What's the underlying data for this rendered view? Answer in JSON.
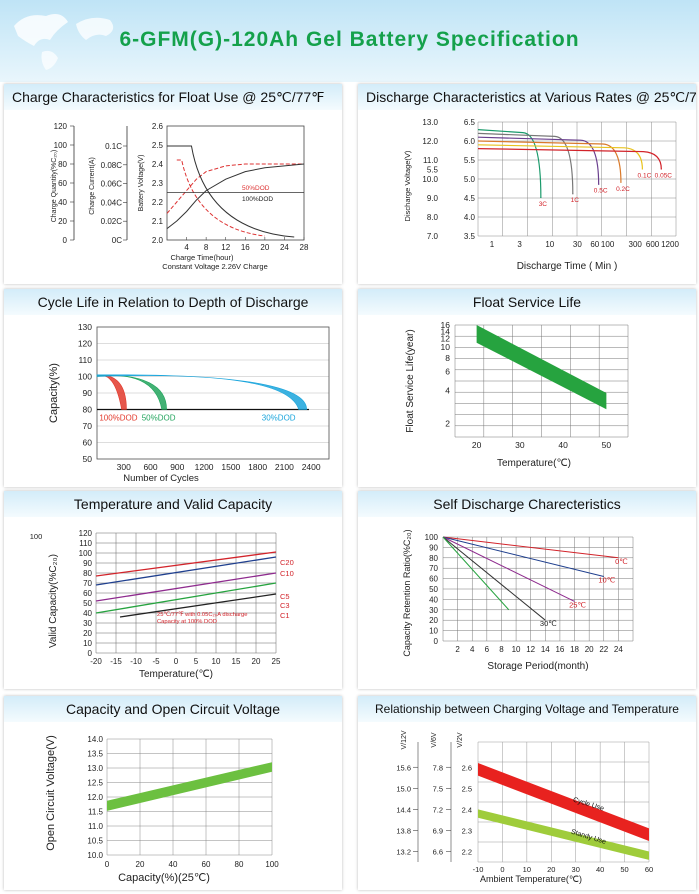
{
  "page": {
    "title": "6-GFM(G)-120Ah Gel Battery Specification"
  },
  "chart_data": [
    {
      "id": "charge",
      "type": "line",
      "title": "Charge Characteristics for Float Use @ 25℃/77℉",
      "ylabel_q": "Charge Quantity(%C₂₀)",
      "yticks_q": [
        "120",
        "100",
        "80",
        "60",
        "40",
        "20",
        "0"
      ],
      "ylabel_i": "Charge Current(A)",
      "yticks_i": [
        "0.1C",
        "0.08C",
        "0.06C",
        "0.04C",
        "0.02C",
        "0C"
      ],
      "ylabel_v": "Battery Voltage(V)",
      "yticks_v": [
        "2.6",
        "2.5",
        "2.4",
        "2.3",
        "2.2",
        "2.1",
        "2.0"
      ],
      "xlabel": "Charge Time(hour)",
      "xticks": [
        "4",
        "8",
        "12",
        "16",
        "20",
        "24",
        "28"
      ],
      "xlim": [
        0,
        28
      ],
      "vlim": [
        2.0,
        2.6
      ],
      "note": "Constant Voltage 2.26V Charge",
      "series": [
        {
          "name": "50%DOD",
          "color": "#d33",
          "x": [
            0,
            2,
            4,
            6,
            8,
            12,
            16,
            20,
            24,
            28
          ],
          "v": [
            2.14,
            2.2,
            2.26,
            2.32,
            2.36,
            2.39,
            2.4,
            2.4,
            2.4,
            2.4
          ]
        },
        {
          "name": "100%DOD",
          "color": "#333",
          "x": [
            0,
            2,
            4,
            6,
            8,
            12,
            16,
            20,
            24,
            28
          ],
          "v": [
            2.06,
            2.1,
            2.15,
            2.21,
            2.26,
            2.32,
            2.36,
            2.38,
            2.39,
            2.4
          ]
        }
      ],
      "legend": [
        "50%DOD",
        "100%DOD"
      ]
    },
    {
      "id": "discharge",
      "type": "line",
      "title": "Discharge Characteristics at Various Rates @ 25℃/77℉",
      "ylabel": "Discharge Voltage(V)",
      "yticks_12v": [
        "13.0",
        "12.0",
        "11.0",
        "10.0",
        "9.0",
        "8.0",
        "7.0"
      ],
      "yticks_12v_extra": [
        "5.5"
      ],
      "yticks_6v": [
        "6.5",
        "6.0",
        "5.5",
        "5.0",
        "4.5",
        "4.0",
        "3.5"
      ],
      "xlabel": "Discharge Time ( Min )",
      "xticks": [
        "1",
        "3",
        "10",
        "30",
        "60",
        "100",
        "300",
        "600",
        "1200"
      ],
      "series": [
        {
          "name": "3C",
          "color": "#1a9a6b",
          "end_min": 7,
          "end_v": 4.5
        },
        {
          "name": "1C",
          "color": "#777",
          "end_min": 25,
          "end_v": 4.6
        },
        {
          "name": "0.5C",
          "color": "#6a3f8e",
          "end_min": 70,
          "end_v": 4.85
        },
        {
          "name": "0.2C",
          "color": "#d97a2b",
          "end_min": 170,
          "end_v": 4.9
        },
        {
          "name": "0.1C",
          "color": "#e8c31f",
          "end_min": 400,
          "end_v": 5.25
        },
        {
          "name": "0.05C",
          "color": "#d2232a",
          "end_min": 850,
          "end_v": 5.25
        }
      ]
    },
    {
      "id": "cycle",
      "type": "area",
      "title": "Cycle  Life in Relation to Depth of Discharge",
      "ylabel": "Capacity(%)",
      "yticks": [
        "130",
        "120",
        "110",
        "100",
        "90",
        "80",
        "70",
        "60",
        "50"
      ],
      "ylim": [
        50,
        130
      ],
      "xlabel": "Number of Cycles",
      "xticks": [
        "300",
        "600",
        "900",
        "1200",
        "1500",
        "1800",
        "2100",
        "2400"
      ],
      "xlim": [
        0,
        2600
      ],
      "series": [
        {
          "name": "100%DOD",
          "color": "#e2382b",
          "end_cycles": 330
        },
        {
          "name": "50%DOD",
          "color": "#22a45d",
          "end_cycles": 780
        },
        {
          "name": "30%DOD",
          "color": "#1aa5dc",
          "end_cycles": 2350
        }
      ]
    },
    {
      "id": "float",
      "type": "area",
      "title": "Float Service Life",
      "ylabel": "Float Service Life(year)",
      "yticks": [
        "16",
        "14",
        "12",
        "10",
        "8",
        "6",
        "4",
        "2"
      ],
      "xlabel": "Temperature(℃)",
      "xticks": [
        "20",
        "30",
        "40",
        "50"
      ],
      "xlim": [
        15,
        55
      ],
      "band": {
        "x": [
          20,
          50
        ],
        "upper": [
          16,
          3.8
        ],
        "lower": [
          11,
          2.7
        ],
        "color": "#26a33f"
      }
    },
    {
      "id": "temp",
      "type": "line",
      "title": "Temperature and Valid Capacity",
      "ylabel": "Valid Capacity(%C₂₀)",
      "yticks": [
        "120",
        "110",
        "100",
        "90",
        "80",
        "70",
        "60",
        "50",
        "40",
        "30",
        "20",
        "10",
        "0"
      ],
      "ytop_label": "100",
      "ylim": [
        0,
        120
      ],
      "xlabel": "Temperature(℃)",
      "xticks": [
        "-20",
        "-15",
        "-10",
        "-5",
        "0",
        "5",
        "10",
        "15",
        "20",
        "25"
      ],
      "xlim": [
        -20,
        25
      ],
      "note1": "25℃/77℉ with 0.05C₂₀A discharge",
      "note2": "Capacity at 100% DOD",
      "series": [
        {
          "name": "C20",
          "color": "#d2232a",
          "v": [
            77,
            101
          ]
        },
        {
          "name": "C10",
          "color": "#1f3f8e",
          "v": [
            68,
            96
          ]
        },
        {
          "name": "C5",
          "color": "#8e2b8e",
          "v": [
            52,
            80
          ]
        },
        {
          "name": "C3",
          "color": "#26a33f",
          "v": [
            40,
            70
          ]
        },
        {
          "name": "C1",
          "color": "#222",
          "x0": -14,
          "v": [
            36,
            59
          ]
        }
      ]
    },
    {
      "id": "selfdis",
      "type": "line",
      "title": "Self Discharge Charecteristics",
      "ylabel": "Capacity Retention Ratio(%C₂₀)",
      "yticks": [
        "100",
        "90",
        "80",
        "70",
        "60",
        "50",
        "40",
        "30",
        "20",
        "10",
        "0"
      ],
      "ylim": [
        0,
        100
      ],
      "xlabel": "Storage Period(month)",
      "xticks": [
        "2",
        "4",
        "6",
        "8",
        "10",
        "12",
        "14",
        "16",
        "18",
        "20",
        "22",
        "24"
      ],
      "xlim": [
        0,
        26
      ],
      "series": [
        {
          "name": "0℃",
          "color": "#d2232a",
          "end_month": 24,
          "end_v": 80
        },
        {
          "name": "10℃",
          "color": "#1f3f8e",
          "end_month": 22,
          "end_v": 62
        },
        {
          "name": "25℃",
          "color": "#8e2b8e",
          "end_month": 18,
          "end_v": 38
        },
        {
          "name": "30℃",
          "color": "#333",
          "end_month": 14,
          "end_v": 20
        },
        {
          "name": "",
          "color": "#26a33f",
          "end_month": 9,
          "end_v": 30
        }
      ]
    },
    {
      "id": "ocv",
      "type": "area",
      "title": "Capacity and Open Circuit Voltage",
      "ylabel": "Open Circuit Voltage(V)",
      "yticks": [
        "14.0",
        "13.5",
        "13.0",
        "12.5",
        "12.0",
        "11.5",
        "11.0",
        "10.5",
        "10.0"
      ],
      "ylim": [
        10.0,
        14.0
      ],
      "xlabel": "Capacity(%)(25℃)",
      "xticks": [
        "0",
        "20",
        "40",
        "60",
        "80",
        "100"
      ],
      "xlim": [
        0,
        100
      ],
      "band": {
        "x": [
          0,
          100
        ],
        "upper": [
          11.87,
          13.2
        ],
        "lower": [
          11.52,
          12.87
        ],
        "color": "#6cc040"
      }
    },
    {
      "id": "chgvolt",
      "type": "area",
      "title": "Relationship between Charging Voltage and Temperature",
      "axis_headers": [
        "V/12V",
        "V/6V",
        "V/2V"
      ],
      "yticks_12v": [
        "15.6",
        "15.0",
        "14.4",
        "13.8",
        "13.2"
      ],
      "yticks_6v": [
        "7.8",
        "7.5",
        "7.2",
        "6.9",
        "6.6"
      ],
      "yticks_2v": [
        "2.6",
        "2.5",
        "2.4",
        "2.3",
        "2.2"
      ],
      "ylim_2v": [
        2.15,
        2.72
      ],
      "xlabel": "Ambient Temperature(℃)",
      "xticks": [
        "-10",
        "0",
        "10",
        "20",
        "30",
        "40",
        "50",
        "60"
      ],
      "xlim": [
        -10,
        60
      ],
      "bands": [
        {
          "name": "Cycle Use",
          "color": "#e8221f",
          "x": [
            -10,
            60
          ],
          "upper": [
            2.62,
            2.31
          ],
          "lower": [
            2.56,
            2.25
          ]
        },
        {
          "name": "Standy Use",
          "color": "#9fcc3b",
          "x": [
            -10,
            60
          ],
          "upper": [
            2.4,
            2.2
          ],
          "lower": [
            2.36,
            2.16
          ]
        }
      ]
    }
  ]
}
